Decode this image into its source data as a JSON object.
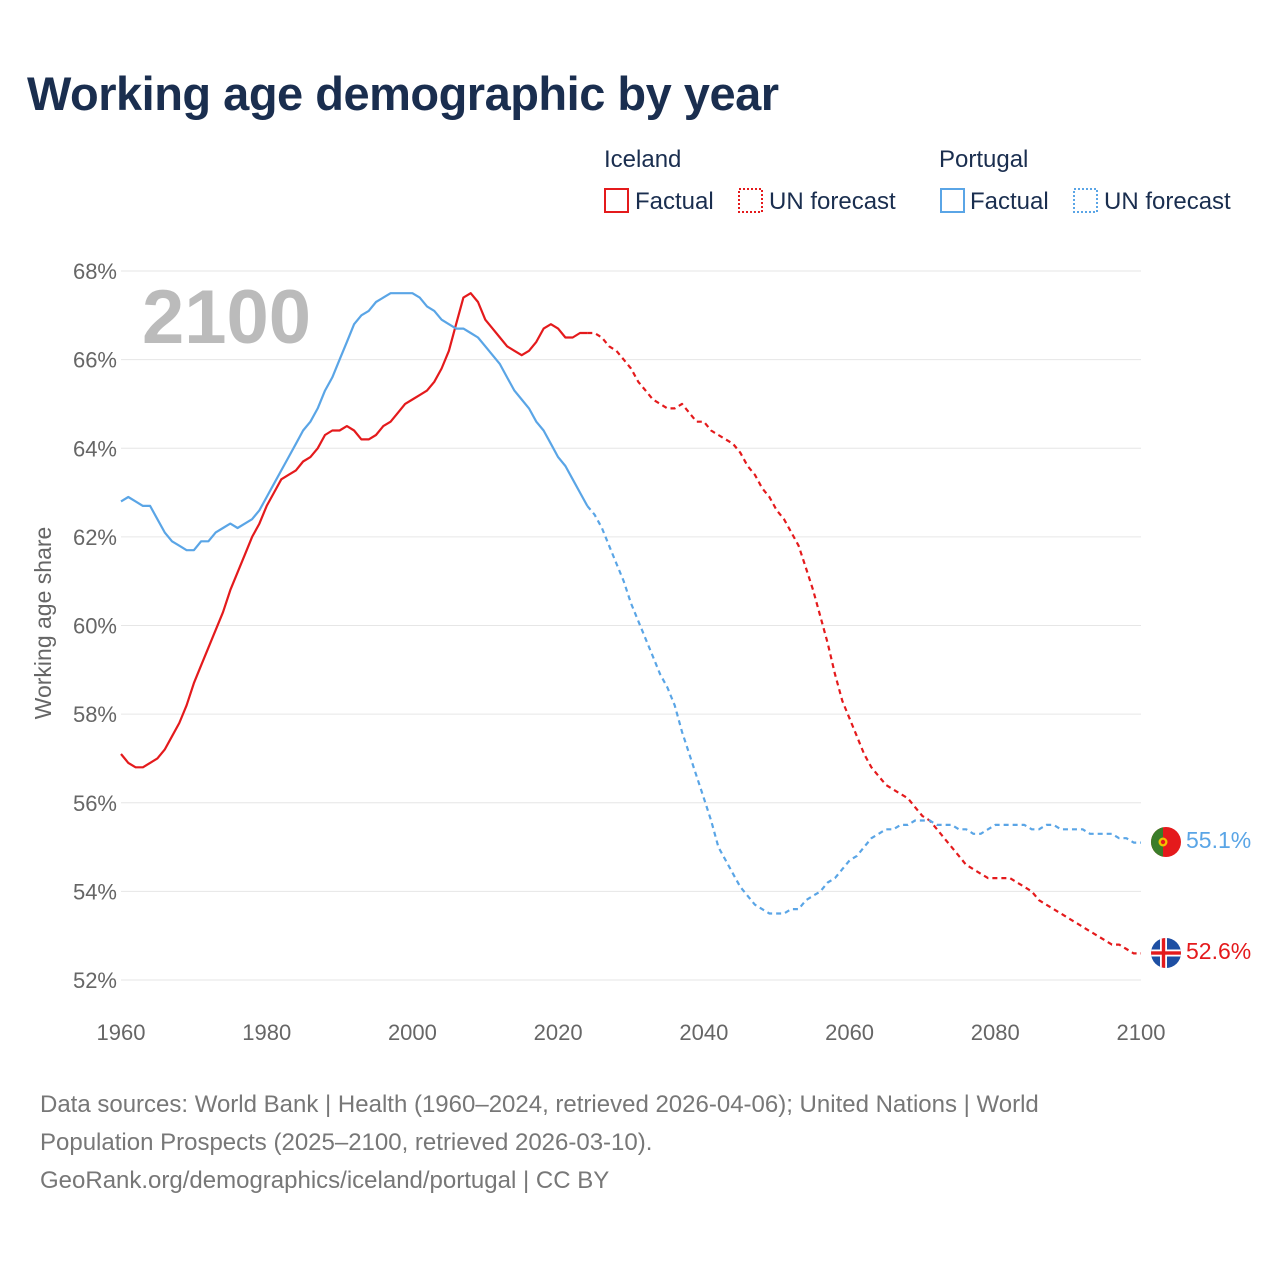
{
  "title": "Working age demographic by year",
  "legend": {
    "groups": [
      {
        "name": "Iceland",
        "factual_label": "Factual",
        "forecast_label": "UN forecast",
        "color": "#e41a1c"
      },
      {
        "name": "Portugal",
        "factual_label": "Factual",
        "forecast_label": "UN forecast",
        "color": "#5aa5e6"
      }
    ]
  },
  "current_year": "2100",
  "source": {
    "line1": "Data sources: World Bank | Health (1960–2024, retrieved 2026-04-06); United Nations | World",
    "line2": "Population Prospects (2025–2100, retrieved 2026-03-10).",
    "line3": "GeoRank.org/demographics/iceland/portugal | CC BY"
  },
  "chart_data": {
    "type": "line",
    "title": "Working age demographic by year",
    "xlabel": "",
    "ylabel": "Working age share",
    "xlim": [
      1960,
      2100
    ],
    "ylim": [
      52,
      68
    ],
    "x_ticks": [
      "1960",
      "1980",
      "2000",
      "2020",
      "2040",
      "2060",
      "2080",
      "2100"
    ],
    "y_ticks": [
      "52%",
      "54%",
      "56%",
      "58%",
      "60%",
      "62%",
      "64%",
      "66%",
      "68%"
    ],
    "factual_end_year": 2024,
    "series": [
      {
        "name": "Iceland",
        "color": "#e41a1c",
        "end_label": "52.6%",
        "points": [
          [
            1960,
            57.1
          ],
          [
            1961,
            56.9
          ],
          [
            1962,
            56.8
          ],
          [
            1963,
            56.8
          ],
          [
            1964,
            56.9
          ],
          [
            1965,
            57.0
          ],
          [
            1966,
            57.2
          ],
          [
            1967,
            57.5
          ],
          [
            1968,
            57.8
          ],
          [
            1969,
            58.2
          ],
          [
            1970,
            58.7
          ],
          [
            1971,
            59.1
          ],
          [
            1972,
            59.5
          ],
          [
            1973,
            59.9
          ],
          [
            1974,
            60.3
          ],
          [
            1975,
            60.8
          ],
          [
            1976,
            61.2
          ],
          [
            1977,
            61.6
          ],
          [
            1978,
            62.0
          ],
          [
            1979,
            62.3
          ],
          [
            1980,
            62.7
          ],
          [
            1981,
            63.0
          ],
          [
            1982,
            63.3
          ],
          [
            1983,
            63.4
          ],
          [
            1984,
            63.5
          ],
          [
            1985,
            63.7
          ],
          [
            1986,
            63.8
          ],
          [
            1987,
            64.0
          ],
          [
            1988,
            64.3
          ],
          [
            1989,
            64.4
          ],
          [
            1990,
            64.4
          ],
          [
            1991,
            64.5
          ],
          [
            1992,
            64.4
          ],
          [
            1993,
            64.2
          ],
          [
            1994,
            64.2
          ],
          [
            1995,
            64.3
          ],
          [
            1996,
            64.5
          ],
          [
            1997,
            64.6
          ],
          [
            1998,
            64.8
          ],
          [
            1999,
            65.0
          ],
          [
            2000,
            65.1
          ],
          [
            2001,
            65.2
          ],
          [
            2002,
            65.3
          ],
          [
            2003,
            65.5
          ],
          [
            2004,
            65.8
          ],
          [
            2005,
            66.2
          ],
          [
            2006,
            66.8
          ],
          [
            2007,
            67.4
          ],
          [
            2008,
            67.5
          ],
          [
            2009,
            67.3
          ],
          [
            2010,
            66.9
          ],
          [
            2011,
            66.7
          ],
          [
            2012,
            66.5
          ],
          [
            2013,
            66.3
          ],
          [
            2014,
            66.2
          ],
          [
            2015,
            66.1
          ],
          [
            2016,
            66.2
          ],
          [
            2017,
            66.4
          ],
          [
            2018,
            66.7
          ],
          [
            2019,
            66.8
          ],
          [
            2020,
            66.7
          ],
          [
            2021,
            66.5
          ],
          [
            2022,
            66.5
          ],
          [
            2023,
            66.6
          ],
          [
            2024,
            66.6
          ],
          [
            2025,
            66.6
          ],
          [
            2026,
            66.5
          ],
          [
            2027,
            66.3
          ],
          [
            2028,
            66.2
          ],
          [
            2029,
            66.0
          ],
          [
            2030,
            65.8
          ],
          [
            2031,
            65.5
          ],
          [
            2032,
            65.3
          ],
          [
            2033,
            65.1
          ],
          [
            2034,
            65.0
          ],
          [
            2035,
            64.9
          ],
          [
            2036,
            64.9
          ],
          [
            2037,
            65.0
          ],
          [
            2038,
            64.8
          ],
          [
            2039,
            64.6
          ],
          [
            2040,
            64.6
          ],
          [
            2041,
            64.4
          ],
          [
            2042,
            64.3
          ],
          [
            2043,
            64.2
          ],
          [
            2044,
            64.1
          ],
          [
            2045,
            63.9
          ],
          [
            2046,
            63.6
          ],
          [
            2047,
            63.4
          ],
          [
            2048,
            63.1
          ],
          [
            2049,
            62.9
          ],
          [
            2050,
            62.6
          ],
          [
            2051,
            62.4
          ],
          [
            2052,
            62.1
          ],
          [
            2053,
            61.8
          ],
          [
            2054,
            61.3
          ],
          [
            2055,
            60.8
          ],
          [
            2056,
            60.2
          ],
          [
            2057,
            59.6
          ],
          [
            2058,
            58.9
          ],
          [
            2059,
            58.3
          ],
          [
            2060,
            57.9
          ],
          [
            2061,
            57.5
          ],
          [
            2062,
            57.1
          ],
          [
            2063,
            56.8
          ],
          [
            2064,
            56.6
          ],
          [
            2065,
            56.4
          ],
          [
            2066,
            56.3
          ],
          [
            2067,
            56.2
          ],
          [
            2068,
            56.1
          ],
          [
            2069,
            55.9
          ],
          [
            2070,
            55.7
          ],
          [
            2071,
            55.6
          ],
          [
            2072,
            55.4
          ],
          [
            2073,
            55.2
          ],
          [
            2074,
            55.0
          ],
          [
            2075,
            54.8
          ],
          [
            2076,
            54.6
          ],
          [
            2077,
            54.5
          ],
          [
            2078,
            54.4
          ],
          [
            2079,
            54.3
          ],
          [
            2080,
            54.3
          ],
          [
            2081,
            54.3
          ],
          [
            2082,
            54.3
          ],
          [
            2083,
            54.2
          ],
          [
            2084,
            54.1
          ],
          [
            2085,
            54.0
          ],
          [
            2086,
            53.8
          ],
          [
            2087,
            53.7
          ],
          [
            2088,
            53.6
          ],
          [
            2089,
            53.5
          ],
          [
            2090,
            53.4
          ],
          [
            2091,
            53.3
          ],
          [
            2092,
            53.2
          ],
          [
            2093,
            53.1
          ],
          [
            2094,
            53.0
          ],
          [
            2095,
            52.9
          ],
          [
            2096,
            52.8
          ],
          [
            2097,
            52.8
          ],
          [
            2098,
            52.7
          ],
          [
            2099,
            52.6
          ],
          [
            2100,
            52.6
          ]
        ]
      },
      {
        "name": "Portugal",
        "color": "#5aa5e6",
        "end_label": "55.1%",
        "points": [
          [
            1960,
            62.8
          ],
          [
            1961,
            62.9
          ],
          [
            1962,
            62.8
          ],
          [
            1963,
            62.7
          ],
          [
            1964,
            62.7
          ],
          [
            1965,
            62.4
          ],
          [
            1966,
            62.1
          ],
          [
            1967,
            61.9
          ],
          [
            1968,
            61.8
          ],
          [
            1969,
            61.7
          ],
          [
            1970,
            61.7
          ],
          [
            1971,
            61.9
          ],
          [
            1972,
            61.9
          ],
          [
            1973,
            62.1
          ],
          [
            1974,
            62.2
          ],
          [
            1975,
            62.3
          ],
          [
            1976,
            62.2
          ],
          [
            1977,
            62.3
          ],
          [
            1978,
            62.4
          ],
          [
            1979,
            62.6
          ],
          [
            1980,
            62.9
          ],
          [
            1981,
            63.2
          ],
          [
            1982,
            63.5
          ],
          [
            1983,
            63.8
          ],
          [
            1984,
            64.1
          ],
          [
            1985,
            64.4
          ],
          [
            1986,
            64.6
          ],
          [
            1987,
            64.9
          ],
          [
            1988,
            65.3
          ],
          [
            1989,
            65.6
          ],
          [
            1990,
            66.0
          ],
          [
            1991,
            66.4
          ],
          [
            1992,
            66.8
          ],
          [
            1993,
            67.0
          ],
          [
            1994,
            67.1
          ],
          [
            1995,
            67.3
          ],
          [
            1996,
            67.4
          ],
          [
            1997,
            67.5
          ],
          [
            1998,
            67.5
          ],
          [
            1999,
            67.5
          ],
          [
            2000,
            67.5
          ],
          [
            2001,
            67.4
          ],
          [
            2002,
            67.2
          ],
          [
            2003,
            67.1
          ],
          [
            2004,
            66.9
          ],
          [
            2005,
            66.8
          ],
          [
            2006,
            66.7
          ],
          [
            2007,
            66.7
          ],
          [
            2008,
            66.6
          ],
          [
            2009,
            66.5
          ],
          [
            2010,
            66.3
          ],
          [
            2011,
            66.1
          ],
          [
            2012,
            65.9
          ],
          [
            2013,
            65.6
          ],
          [
            2014,
            65.3
          ],
          [
            2015,
            65.1
          ],
          [
            2016,
            64.9
          ],
          [
            2017,
            64.6
          ],
          [
            2018,
            64.4
          ],
          [
            2019,
            64.1
          ],
          [
            2020,
            63.8
          ],
          [
            2021,
            63.6
          ],
          [
            2022,
            63.3
          ],
          [
            2023,
            63.0
          ],
          [
            2024,
            62.7
          ],
          [
            2025,
            62.5
          ],
          [
            2026,
            62.2
          ],
          [
            2027,
            61.8
          ],
          [
            2028,
            61.4
          ],
          [
            2029,
            61.0
          ],
          [
            2030,
            60.5
          ],
          [
            2031,
            60.1
          ],
          [
            2032,
            59.7
          ],
          [
            2033,
            59.3
          ],
          [
            2034,
            58.9
          ],
          [
            2035,
            58.6
          ],
          [
            2036,
            58.2
          ],
          [
            2037,
            57.6
          ],
          [
            2038,
            57.1
          ],
          [
            2039,
            56.6
          ],
          [
            2040,
            56.1
          ],
          [
            2041,
            55.6
          ],
          [
            2042,
            55.0
          ],
          [
            2043,
            54.7
          ],
          [
            2044,
            54.4
          ],
          [
            2045,
            54.1
          ],
          [
            2046,
            53.9
          ],
          [
            2047,
            53.7
          ],
          [
            2048,
            53.6
          ],
          [
            2049,
            53.5
          ],
          [
            2050,
            53.5
          ],
          [
            2051,
            53.5
          ],
          [
            2052,
            53.6
          ],
          [
            2053,
            53.6
          ],
          [
            2054,
            53.8
          ],
          [
            2055,
            53.9
          ],
          [
            2056,
            54.0
          ],
          [
            2057,
            54.2
          ],
          [
            2058,
            54.3
          ],
          [
            2059,
            54.5
          ],
          [
            2060,
            54.7
          ],
          [
            2061,
            54.8
          ],
          [
            2062,
            55.0
          ],
          [
            2063,
            55.2
          ],
          [
            2064,
            55.3
          ],
          [
            2065,
            55.4
          ],
          [
            2066,
            55.4
          ],
          [
            2067,
            55.5
          ],
          [
            2068,
            55.5
          ],
          [
            2069,
            55.6
          ],
          [
            2070,
            55.6
          ],
          [
            2071,
            55.6
          ],
          [
            2072,
            55.5
          ],
          [
            2073,
            55.5
          ],
          [
            2074,
            55.5
          ],
          [
            2075,
            55.4
          ],
          [
            2076,
            55.4
          ],
          [
            2077,
            55.3
          ],
          [
            2078,
            55.3
          ],
          [
            2079,
            55.4
          ],
          [
            2080,
            55.5
          ],
          [
            2081,
            55.5
          ],
          [
            2082,
            55.5
          ],
          [
            2083,
            55.5
          ],
          [
            2084,
            55.5
          ],
          [
            2085,
            55.4
          ],
          [
            2086,
            55.4
          ],
          [
            2087,
            55.5
          ],
          [
            2088,
            55.5
          ],
          [
            2089,
            55.4
          ],
          [
            2090,
            55.4
          ],
          [
            2091,
            55.4
          ],
          [
            2092,
            55.4
          ],
          [
            2093,
            55.3
          ],
          [
            2094,
            55.3
          ],
          [
            2095,
            55.3
          ],
          [
            2096,
            55.3
          ],
          [
            2097,
            55.2
          ],
          [
            2098,
            55.2
          ],
          [
            2099,
            55.1
          ],
          [
            2100,
            55.1
          ]
        ]
      }
    ]
  }
}
